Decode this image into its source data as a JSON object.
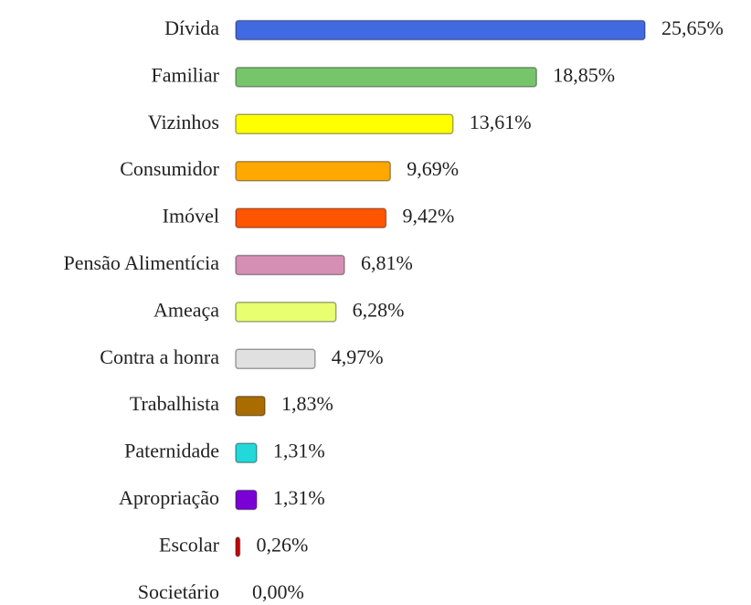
{
  "chart_data": {
    "type": "hbar",
    "categories": [
      "Dívida",
      "Familiar",
      "Vizinhos",
      "Consumidor",
      "Imóvel",
      "Pensão Alimentícia",
      "Ameaça",
      "Contra a honra",
      "Trabalhista",
      "Paternidade",
      "Apropriação",
      "Escolar",
      "Societário"
    ],
    "values": [
      25.65,
      18.85,
      13.61,
      9.69,
      9.42,
      6.81,
      6.28,
      4.97,
      1.83,
      1.31,
      1.31,
      0.26,
      0.0
    ],
    "value_labels": [
      "25,65%",
      "18,85%",
      "13,61%",
      "9,69%",
      "9,42%",
      "6,81%",
      "6,28%",
      "4,97%",
      "1,83%",
      "1,31%",
      "1,31%",
      "0,26%",
      "0,00%"
    ],
    "colors": [
      "#4169e1",
      "#77c56b",
      "#ffff00",
      "#ffa800",
      "#ff5500",
      "#d68fb4",
      "#e8ff70",
      "#e0e0e0",
      "#a86c00",
      "#22d8d8",
      "#7a00d6",
      "#cc0000",
      "#999999"
    ]
  }
}
